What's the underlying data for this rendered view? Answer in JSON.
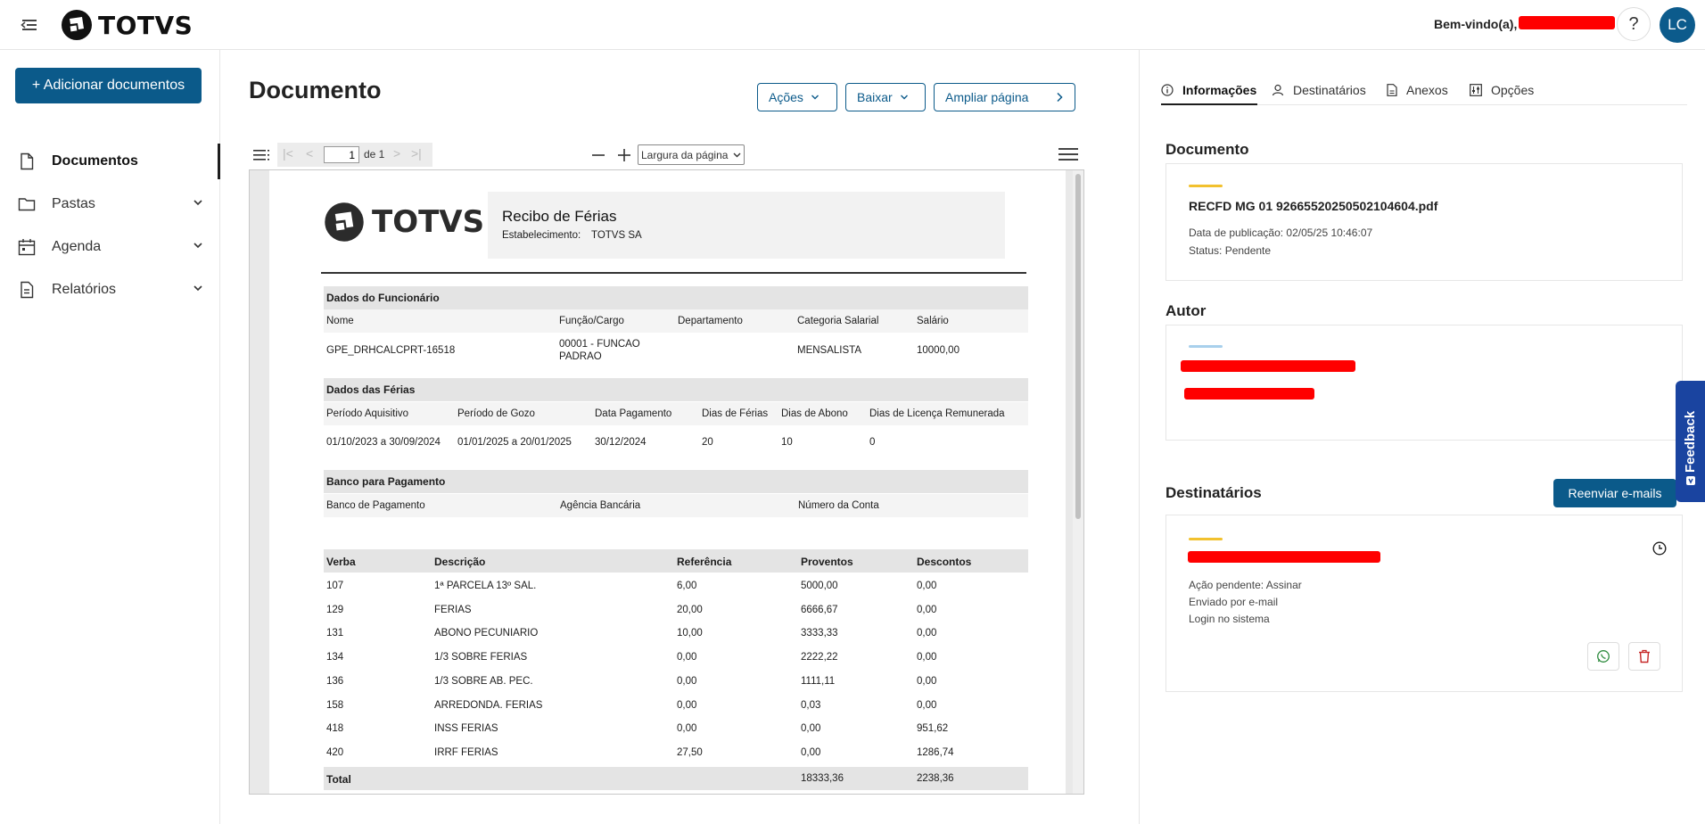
{
  "header": {
    "logo_text": "TOTVS",
    "welcome": "Bem-vindo(a),",
    "help": "?",
    "avatar": "LC"
  },
  "sidebar": {
    "add_button": "+ Adicionar documentos",
    "items": [
      {
        "label": "Documentos"
      },
      {
        "label": "Pastas"
      },
      {
        "label": "Agenda"
      },
      {
        "label": "Relatórios"
      }
    ]
  },
  "main": {
    "title": "Documento",
    "actions_label": "Ações",
    "download_label": "Baixar",
    "expand_label": "Ampliar página"
  },
  "viewer": {
    "page_input": "1",
    "page_total": "de 1",
    "zoom_select": "Largura da página"
  },
  "receipt": {
    "logo": "TOTVS",
    "title": "Recibo de Férias",
    "establishment_label": "Estabelecimento:",
    "establishment_value": "TOTVS SA",
    "employee_section": "Dados do Funcionário",
    "employee_headers": [
      "Nome",
      "Função/Cargo",
      "Departamento",
      "Categoria Salarial",
      "Salário"
    ],
    "employee_values": {
      "name": "GPE_DRHCALCPRT-16518",
      "role_line1": "00001 - FUNCAO",
      "role_line2": "PADRAO",
      "department": "",
      "category": "MENSALISTA",
      "salary": "10000,00"
    },
    "vacation_section": "Dados das Férias",
    "vacation_headers": [
      "Período Aquisitivo",
      "Período de Gozo",
      "Data Pagamento",
      "Dias de Férias",
      "Dias de Abono",
      "Dias de Licença Remunerada"
    ],
    "vacation_values": [
      "01/10/2023 a 30/09/2024",
      "01/01/2025 a 20/01/2025",
      "30/12/2024",
      "20",
      "10",
      "0"
    ],
    "bank_section": "Banco para Pagamento",
    "bank_headers": [
      "Banco de Pagamento",
      "Agência Bancária",
      "Número da Conta"
    ],
    "items_headers": [
      "Verba",
      "Descrição",
      "Referência",
      "Proventos",
      "Descontos"
    ],
    "items": [
      [
        "107",
        "1ª PARCELA 13º SAL.",
        "6,00",
        "5000,00",
        "0,00"
      ],
      [
        "129",
        "FERIAS",
        "20,00",
        "6666,67",
        "0,00"
      ],
      [
        "131",
        "ABONO PECUNIARIO",
        "10,00",
        "3333,33",
        "0,00"
      ],
      [
        "134",
        "1/3 SOBRE FERIAS",
        "0,00",
        "2222,22",
        "0,00"
      ],
      [
        "136",
        "1/3 SOBRE AB. PEC.",
        "0,00",
        "1111,11",
        "0,00"
      ],
      [
        "158",
        "ARREDONDA. FERIAS",
        "0,00",
        "0,03",
        "0,00"
      ],
      [
        "418",
        "INSS FERIAS",
        "0,00",
        "0,00",
        "951,62"
      ],
      [
        "420",
        "IRRF FERIAS",
        "27,50",
        "0,00",
        "1286,74"
      ]
    ],
    "total_label": "Total",
    "total_proventos": "18333,36",
    "total_descontos": "2238,36"
  },
  "right": {
    "tabs": [
      {
        "label": "Informações"
      },
      {
        "label": "Destinatários"
      },
      {
        "label": "Anexos"
      },
      {
        "label": "Opções"
      }
    ],
    "document_heading": "Documento",
    "file_name": "RECFD MG 01 92665520250502104604.pdf",
    "pub_date": "Data de publicação: 02/05/25 10:46:07",
    "status": "Status: Pendente",
    "author_heading": "Autor",
    "recipients_heading": "Destinatários",
    "resend_button": "Reenviar e-mails",
    "pending_action": "Ação pendente: Assinar",
    "sent_by": "Enviado por e-mail",
    "login": "Login no sistema",
    "feedback": "Feedback",
    "accent_yellow": "#f2c12e",
    "accent_blue": "#a8d0ec"
  }
}
